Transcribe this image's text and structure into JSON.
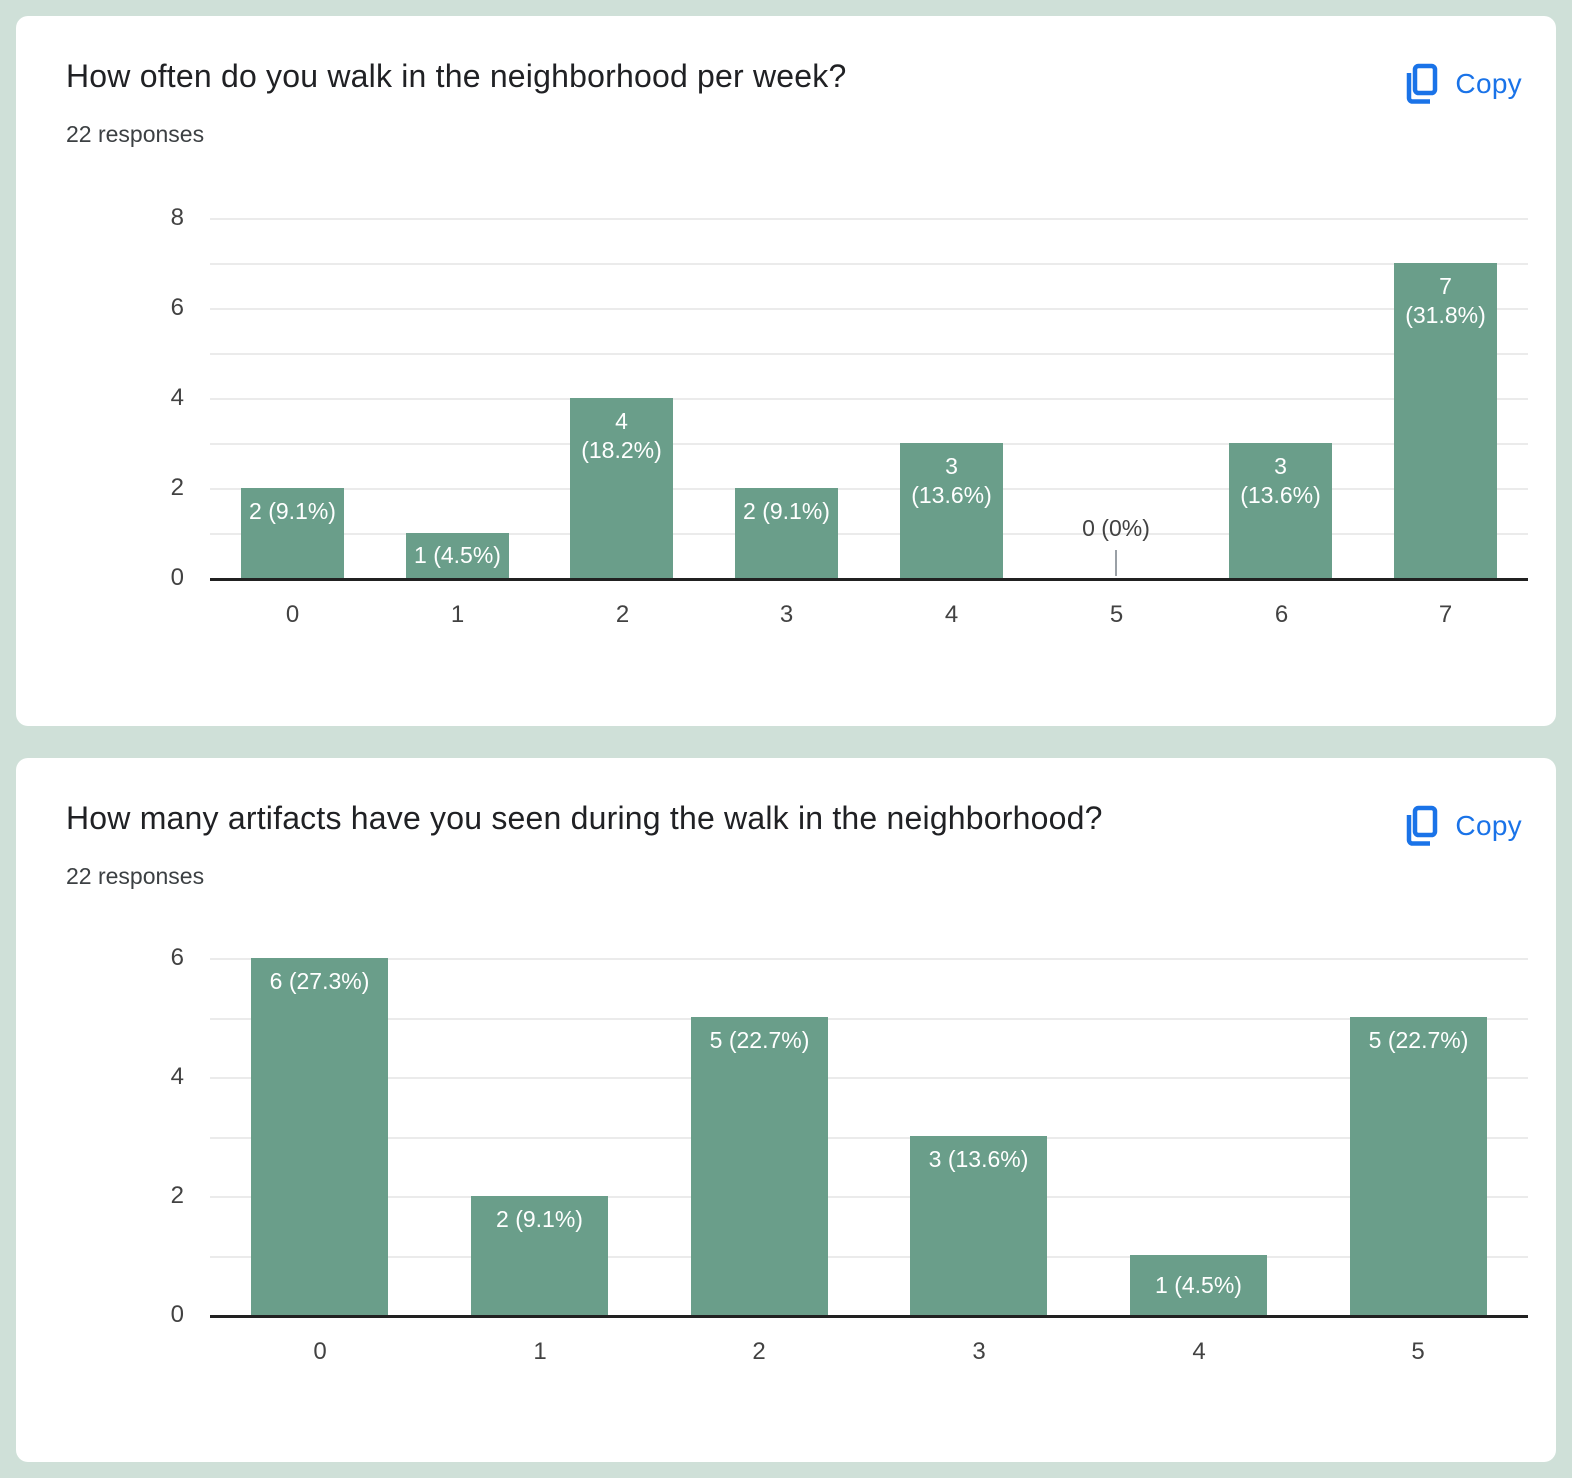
{
  "page": {
    "background_color": "#cfe0d8",
    "card_color": "#ffffff",
    "accent_blue": "#1a73e8"
  },
  "chart_data": [
    {
      "type": "bar",
      "title": "How often do you walk in the neighborhood per week?",
      "responses_label": "22 responses",
      "copy_label": "Copy",
      "categories": [
        "0",
        "1",
        "2",
        "3",
        "4",
        "5",
        "6",
        "7"
      ],
      "values": [
        2,
        1,
        4,
        2,
        3,
        0,
        3,
        7
      ],
      "percents": [
        "9.1%",
        "4.5%",
        "18.2%",
        "9.1%",
        "13.6%",
        "0%",
        "13.6%",
        "31.8%"
      ],
      "bar_label_lines": [
        [
          "2 (9.1%)"
        ],
        [
          "1 (4.5%)"
        ],
        [
          "4",
          "(18.2%)"
        ],
        [
          "2 (9.1%)"
        ],
        [
          "3",
          "(13.6%)"
        ],
        [
          "0 (0%)"
        ],
        [
          "3",
          "(13.6%)"
        ],
        [
          "7",
          "(31.8%)"
        ]
      ],
      "xlabel": "",
      "ylabel": "",
      "y_ticks": [
        0,
        2,
        4,
        6,
        8
      ],
      "ylim": [
        0,
        8
      ],
      "grid": true,
      "legend": "none",
      "bar_color": "#6a9e8a",
      "label_color_inside": "#ffffff",
      "label_color_zero": "#424242"
    },
    {
      "type": "bar",
      "title": "How many artifacts have you seen during the walk in the neighborhood?",
      "responses_label": "22 responses",
      "copy_label": "Copy",
      "categories": [
        "0",
        "1",
        "2",
        "3",
        "4",
        "5"
      ],
      "values": [
        6,
        2,
        5,
        3,
        1,
        5
      ],
      "percents": [
        "27.3%",
        "9.1%",
        "22.7%",
        "13.6%",
        "4.5%",
        "22.7%"
      ],
      "bar_label_lines": [
        [
          "6 (27.3%)"
        ],
        [
          "2 (9.1%)"
        ],
        [
          "5 (22.7%)"
        ],
        [
          "3 (13.6%)"
        ],
        [
          "1 (4.5%)"
        ],
        [
          "5 (22.7%)"
        ]
      ],
      "xlabel": "",
      "ylabel": "",
      "y_ticks": [
        0,
        2,
        4,
        6
      ],
      "ylim": [
        0,
        6
      ],
      "grid": true,
      "legend": "none",
      "bar_color": "#6a9e8a",
      "label_color_inside": "#ffffff",
      "label_color_zero": "#424242"
    }
  ]
}
